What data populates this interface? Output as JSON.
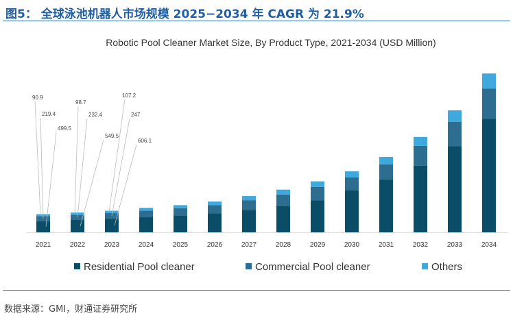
{
  "figure_title": "图5： 全球泳池机器人市场规模 2025−2034 年 CAGR 为 21.9%",
  "source": "数据来源：GMI，财通证券研究所",
  "colors": {
    "residential": "#0b4d66",
    "commercial": "#2d6d90",
    "others": "#3fa9dd",
    "title": "#1f5fa6"
  },
  "chart_data": {
    "type": "bar",
    "stacked": true,
    "title": "Robotic Pool Cleaner Market Size, By Product Type, 2021-2034 (USD Million)",
    "categories": [
      "2021",
      "2022",
      "2023",
      "2024",
      "2025",
      "2026",
      "2027",
      "2028",
      "2029",
      "2030",
      "2031",
      "2032",
      "2033",
      "2034"
    ],
    "series": [
      {
        "name": "Residential Pool cleaner",
        "values": [
          499.5,
          549.5,
          606.1,
          670,
          745,
          850,
          1000,
          1180,
          1420,
          1860,
          2350,
          2960,
          3840,
          5060
        ]
      },
      {
        "name": "Commercial Pool cleaner",
        "values": [
          219.4,
          232.4,
          247,
          295,
          325,
          365,
          430,
          505,
          600,
          580,
          670,
          885,
          1070,
          1340
        ]
      },
      {
        "name": "Others",
        "values": [
          90.9,
          98.7,
          107.2,
          125,
          140,
          155,
          185,
          215,
          250,
          275,
          335,
          400,
          520,
          670
        ]
      }
    ],
    "data_labels": [
      {
        "year": "2021",
        "labels": [
          "90.9",
          "219.4",
          "499.5"
        ]
      },
      {
        "year": "2022",
        "labels": [
          "98.7",
          "232.4",
          "549.5"
        ]
      },
      {
        "year": "2023",
        "labels": [
          "107.2",
          "247",
          "606.1"
        ]
      }
    ],
    "ylim": [
      0,
      7500
    ],
    "legend": "bottom",
    "grid": false
  }
}
